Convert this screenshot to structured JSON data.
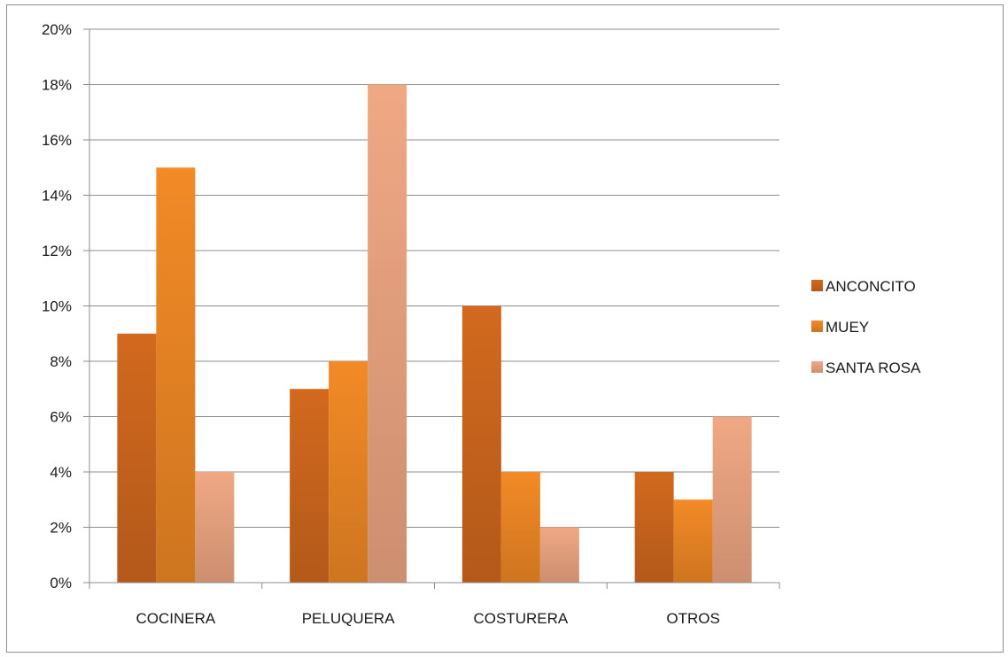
{
  "chart_data": {
    "type": "bar",
    "categories": [
      "COCINERA",
      "PELUQUERA",
      "COSTURERA",
      "OTROS"
    ],
    "series": [
      {
        "name": "ANCONCITO",
        "values": [
          9,
          7,
          10,
          4
        ],
        "color": "#d2691e"
      },
      {
        "name": "MUEY",
        "values": [
          15,
          8,
          4,
          3
        ],
        "color": "#f28a26"
      },
      {
        "name": "SANTA ROSA",
        "values": [
          4,
          18,
          2,
          6
        ],
        "color": "#f0a884"
      }
    ],
    "y_ticks": [
      "0%",
      "2%",
      "4%",
      "6%",
      "8%",
      "10%",
      "12%",
      "14%",
      "16%",
      "18%",
      "20%"
    ],
    "ylim": [
      0,
      20
    ],
    "y_unit": "%",
    "grid": true,
    "legend_position": "right",
    "title": "",
    "xlabel": "",
    "ylabel": ""
  }
}
